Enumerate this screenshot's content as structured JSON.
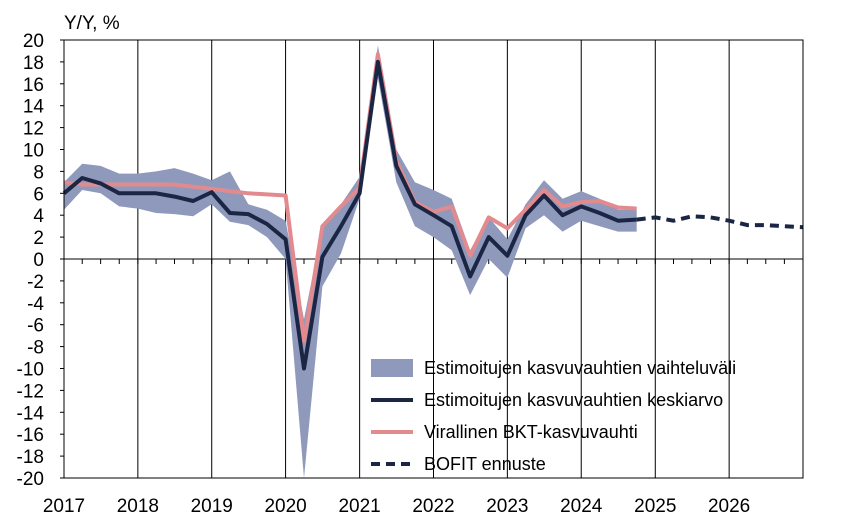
{
  "chart_data": {
    "type": "line",
    "unit_label": "Y/Y, %",
    "ylim": [
      -20,
      20
    ],
    "y_ticks": [
      20,
      18,
      16,
      14,
      12,
      10,
      8,
      6,
      4,
      2,
      0,
      -2,
      -4,
      -6,
      -8,
      -10,
      -12,
      -14,
      -16,
      -18,
      -20
    ],
    "x_ticks": [
      "2017",
      "2018",
      "2019",
      "2020",
      "2021",
      "2022",
      "2023",
      "2024",
      "2025",
      "2026"
    ],
    "xlim": [
      "2017-01-01",
      "2027-01-01"
    ],
    "grid": "vertical year lines",
    "legend_position": "bottom-right",
    "colors": {
      "band": "#8e99bc",
      "mean": "#1b2645",
      "official": "#e38a8e",
      "forecast": "#1b2645"
    },
    "legend": [
      {
        "key": "band",
        "label": "Estimoitujen kasvuvauhtien vaihteluväli"
      },
      {
        "key": "mean",
        "label": "Estimoitujen kasvuvauhtien keskiarvo"
      },
      {
        "key": "official",
        "label": "Virallinen BKT-kasvuvauhti"
      },
      {
        "key": "forecast",
        "label": "BOFIT ennuste"
      }
    ],
    "band": {
      "name": "Estimoitujen kasvuvauhtien vaihteluväli",
      "x": [
        "2017-01-01",
        "2017-04-01",
        "2017-07-01",
        "2017-10-01",
        "2018-01-01",
        "2018-04-01",
        "2018-07-01",
        "2018-10-01",
        "2019-01-01",
        "2019-04-01",
        "2019-07-01",
        "2019-10-01",
        "2020-01-01",
        "2020-04-01",
        "2020-07-01",
        "2020-10-01",
        "2021-01-01",
        "2021-04-01",
        "2021-07-01",
        "2021-10-01",
        "2022-01-01",
        "2022-04-01",
        "2022-07-01",
        "2022-10-01",
        "2023-01-01",
        "2023-04-01",
        "2023-07-01",
        "2023-10-01",
        "2024-01-01",
        "2024-04-01",
        "2024-07-01",
        "2024-10-01"
      ],
      "low": [
        4.5,
        6.3,
        6.0,
        4.8,
        4.6,
        4.2,
        4.1,
        3.9,
        5.0,
        3.4,
        3.1,
        2.0,
        0.0,
        -20.0,
        -2.5,
        0.5,
        5.5,
        16.5,
        7.0,
        3.0,
        2.0,
        0.8,
        -3.3,
        0.0,
        -1.7,
        2.8,
        4.0,
        2.5,
        3.5,
        3.0,
        2.5,
        2.5
      ],
      "high": [
        7.0,
        8.7,
        8.5,
        7.8,
        7.8,
        8.0,
        8.3,
        7.8,
        7.2,
        8.0,
        5.0,
        4.5,
        3.5,
        -5.5,
        3.0,
        5.0,
        7.5,
        19.5,
        10.0,
        7.0,
        6.3,
        5.5,
        0.8,
        3.8,
        1.8,
        5.0,
        7.2,
        5.5,
        6.2,
        5.5,
        4.5,
        4.5
      ]
    },
    "series": [
      {
        "name": "Estimoitujen kasvuvauhtien keskiarvo",
        "key": "mean",
        "x": [
          "2017-01-01",
          "2017-04-01",
          "2017-07-01",
          "2017-10-01",
          "2018-01-01",
          "2018-04-01",
          "2018-07-01",
          "2018-10-01",
          "2019-01-01",
          "2019-04-01",
          "2019-07-01",
          "2019-10-01",
          "2020-01-01",
          "2020-04-01",
          "2020-07-01",
          "2020-10-01",
          "2021-01-01",
          "2021-04-01",
          "2021-07-01",
          "2021-10-01",
          "2022-01-01",
          "2022-04-01",
          "2022-07-01",
          "2022-10-01",
          "2023-01-01",
          "2023-04-01",
          "2023-07-01",
          "2023-10-01",
          "2024-01-01",
          "2024-04-01",
          "2024-07-01",
          "2024-10-01"
        ],
        "values": [
          6.0,
          7.4,
          6.9,
          6.0,
          6.0,
          6.0,
          5.7,
          5.3,
          6.1,
          4.2,
          4.1,
          3.2,
          1.8,
          -10.0,
          0.2,
          3.0,
          6.0,
          18.0,
          8.5,
          5.0,
          4.0,
          3.0,
          -1.6,
          2.0,
          0.3,
          4.0,
          5.8,
          4.0,
          4.8,
          4.2,
          3.5,
          3.6
        ]
      },
      {
        "name": "Virallinen BKT-kasvuvauhti",
        "key": "official",
        "x": [
          "2017-01-01",
          "2017-04-01",
          "2017-07-01",
          "2017-10-01",
          "2018-01-01",
          "2018-04-01",
          "2018-07-01",
          "2018-10-01",
          "2019-01-01",
          "2019-04-01",
          "2019-07-01",
          "2019-10-01",
          "2020-01-01",
          "2020-04-01",
          "2020-07-01",
          "2020-10-01",
          "2021-01-01",
          "2021-04-01",
          "2021-07-01",
          "2021-10-01",
          "2022-01-01",
          "2022-04-01",
          "2022-07-01",
          "2022-10-01",
          "2023-01-01",
          "2023-04-01",
          "2023-07-01",
          "2023-10-01",
          "2024-01-01",
          "2024-04-01",
          "2024-07-01",
          "2024-10-01"
        ],
        "values": [
          7.0,
          6.8,
          6.8,
          6.8,
          6.8,
          6.8,
          6.8,
          6.6,
          6.4,
          6.2,
          6.0,
          5.9,
          5.8,
          -7.5,
          3.0,
          4.8,
          6.5,
          18.7,
          9.0,
          5.2,
          4.3,
          4.8,
          0.3,
          3.8,
          2.8,
          4.5,
          6.3,
          4.8,
          5.2,
          5.3,
          4.7,
          4.6
        ]
      },
      {
        "name": "BOFIT ennuste",
        "key": "forecast",
        "x": [
          "2024-10-01",
          "2025-01-01",
          "2025-04-01",
          "2025-07-01",
          "2025-10-01",
          "2026-01-01",
          "2026-04-01",
          "2026-07-01",
          "2026-10-01",
          "2027-01-01"
        ],
        "values": [
          3.6,
          3.8,
          3.5,
          3.9,
          3.8,
          3.5,
          3.1,
          3.1,
          3.0,
          2.9
        ]
      }
    ]
  }
}
